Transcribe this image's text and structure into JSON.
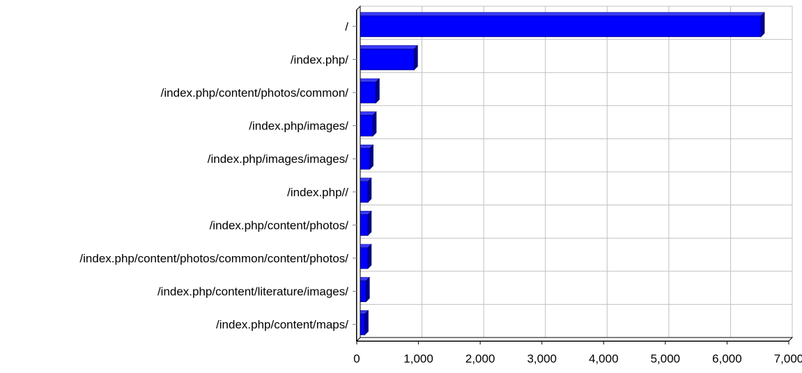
{
  "chart_data": {
    "type": "bar",
    "orientation": "horizontal",
    "categories": [
      "/",
      "/index.php/",
      "/index.php/content/photos/common/",
      "/index.php/images/",
      "/index.php/images/images/",
      "/index.php//",
      "/index.php/content/photos/",
      "/index.php/content/photos/common/content/photos/",
      "/index.php/content/literature/images/",
      "/index.php/content/maps/"
    ],
    "values": [
      6550,
      930,
      310,
      260,
      210,
      180,
      180,
      180,
      150,
      130
    ],
    "xlim": [
      0,
      7000
    ],
    "xticks": [
      0,
      1000,
      2000,
      3000,
      4000,
      5000,
      6000,
      7000
    ],
    "xtick_labels": [
      "0",
      "1,000",
      "2,000",
      "3,000",
      "4,000",
      "5,000",
      "6,000",
      "7,000"
    ],
    "title": "",
    "xlabel": "",
    "ylabel": "",
    "grid": true,
    "legend": "none",
    "colors": {
      "bar": "#0000ff",
      "bar_top": "#3a3aff",
      "bar_side": "#00008a",
      "grid": "#c0c0c0",
      "axis": "#000000"
    }
  }
}
